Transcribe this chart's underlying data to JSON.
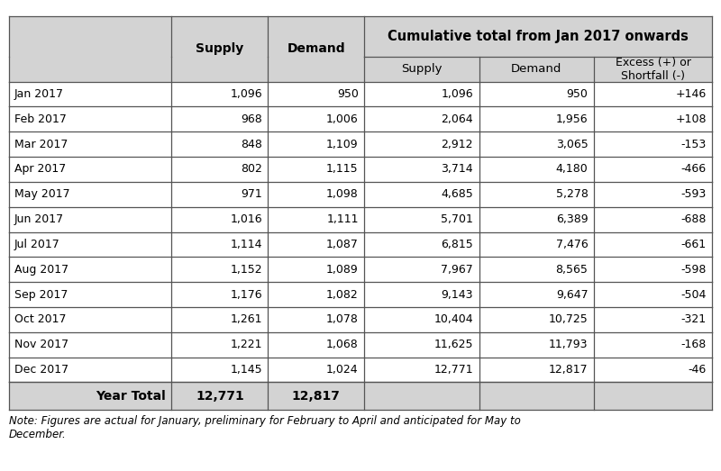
{
  "note": "Note: Figures are actual for January, preliminary for February to April and anticipated for May to\nDecember.",
  "months": [
    "Jan 2017",
    "Feb 2017",
    "Mar 2017",
    "Apr 2017",
    "May 2017",
    "Jun 2017",
    "Jul 2017",
    "Aug 2017",
    "Sep 2017",
    "Oct 2017",
    "Nov 2017",
    "Dec 2017"
  ],
  "supply": [
    1096,
    968,
    848,
    802,
    971,
    1016,
    1114,
    1152,
    1176,
    1261,
    1221,
    1145
  ],
  "demand": [
    950,
    1006,
    1109,
    1115,
    1098,
    1111,
    1087,
    1089,
    1082,
    1078,
    1068,
    1024
  ],
  "cum_supply": [
    "1,096",
    "2,064",
    "2,912",
    "3,714",
    "4,685",
    "5,701",
    "6,815",
    "7,967",
    "9,143",
    "10,404",
    "11,625",
    "12,771"
  ],
  "cum_demand": [
    "950",
    "1,956",
    "3,065",
    "4,180",
    "5,278",
    "6,389",
    "7,476",
    "8,565",
    "9,647",
    "10,725",
    "11,793",
    "12,817"
  ],
  "excess": [
    "+146",
    "+108",
    "-153",
    "-466",
    "-593",
    "-688",
    "-661",
    "-598",
    "-504",
    "-321",
    "-168",
    "-46"
  ],
  "supply_fmt": [
    "1,096",
    "968",
    "848",
    "802",
    "971",
    "1,016",
    "1,114",
    "1,152",
    "1,176",
    "1,261",
    "1,221",
    "1,145"
  ],
  "demand_fmt": [
    "950",
    "1,006",
    "1,109",
    "1,115",
    "1,098",
    "1,111",
    "1,087",
    "1,089",
    "1,082",
    "1,078",
    "1,068",
    "1,024"
  ],
  "year_total_supply": "12,771",
  "year_total_demand": "12,817",
  "header_bg": "#d3d3d3",
  "row_bg": "#ffffff",
  "border_color": "#555555",
  "cum_header_text": "Cumulative total from Jan 2017 onwards",
  "fig_width": 8.0,
  "fig_height": 5.23,
  "dpi": 100
}
